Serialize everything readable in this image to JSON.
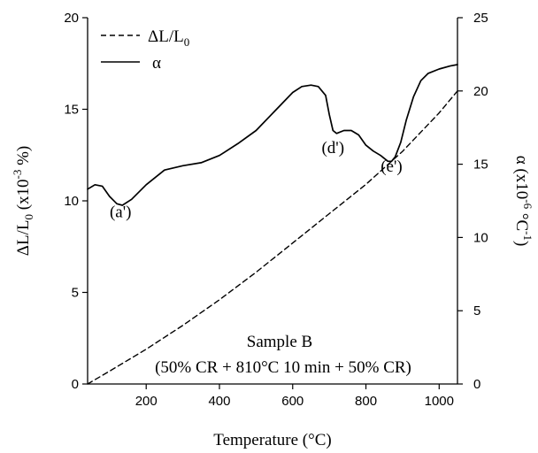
{
  "chart_data": {
    "type": "line",
    "x_label": "Temperature (°C)",
    "y_left_label": "ΔL/L0 (x10-3 %)",
    "y_right_label": "α (x10-6 °C-1)",
    "xlim": [
      40,
      1050
    ],
    "ylim_left": [
      0,
      20
    ],
    "ylim_right": [
      0,
      25
    ],
    "x_ticks": [
      "200",
      "400",
      "600",
      "800",
      "1000"
    ],
    "y_left_ticks": [
      "0",
      "5",
      "10",
      "15",
      "20"
    ],
    "y_right_ticks": [
      "0",
      "5",
      "10",
      "15",
      "20",
      "25"
    ],
    "legend": [
      {
        "label": "ΔL/L0",
        "style": "dashed"
      },
      {
        "label": "α",
        "style": "solid"
      }
    ],
    "series": [
      {
        "name": "ΔL/L0",
        "axis": "left",
        "style": "dashed",
        "x": [
          40,
          100,
          200,
          300,
          400,
          500,
          600,
          700,
          800,
          900,
          1000,
          1050
        ],
        "y": [
          0.0,
          0.7,
          1.9,
          3.2,
          4.6,
          6.1,
          7.7,
          9.3,
          10.9,
          12.7,
          14.8,
          16.0
        ]
      },
      {
        "name": "α",
        "axis": "right",
        "style": "solid",
        "x": [
          40,
          60,
          80,
          100,
          120,
          135,
          160,
          200,
          250,
          300,
          350,
          400,
          450,
          500,
          550,
          600,
          625,
          650,
          670,
          690,
          700,
          710,
          720,
          740,
          760,
          780,
          800,
          820,
          840,
          860,
          870,
          880,
          895,
          910,
          930,
          950,
          970,
          1000,
          1030,
          1050
        ],
        "y": [
          13.3,
          13.6,
          13.5,
          12.8,
          12.3,
          12.2,
          12.6,
          13.6,
          14.6,
          14.9,
          15.1,
          15.6,
          16.4,
          17.3,
          18.6,
          19.9,
          20.3,
          20.4,
          20.3,
          19.7,
          18.4,
          17.3,
          17.1,
          17.3,
          17.3,
          17.0,
          16.3,
          15.9,
          15.6,
          15.2,
          15.2,
          15.5,
          16.5,
          18.0,
          19.6,
          20.7,
          21.2,
          21.5,
          21.7,
          21.8
        ]
      }
    ],
    "annotations": [
      {
        "text": "(a')",
        "x": 130,
        "y_left": 9.1
      },
      {
        "text": "(d')",
        "x": 710,
        "y_left": 12.6
      },
      {
        "text": "(e')",
        "x": 870,
        "y_left": 11.6
      }
    ],
    "sample_title": "Sample B",
    "sample_subtitle": "(50% CR + 810°C 10 min + 50% CR)"
  }
}
